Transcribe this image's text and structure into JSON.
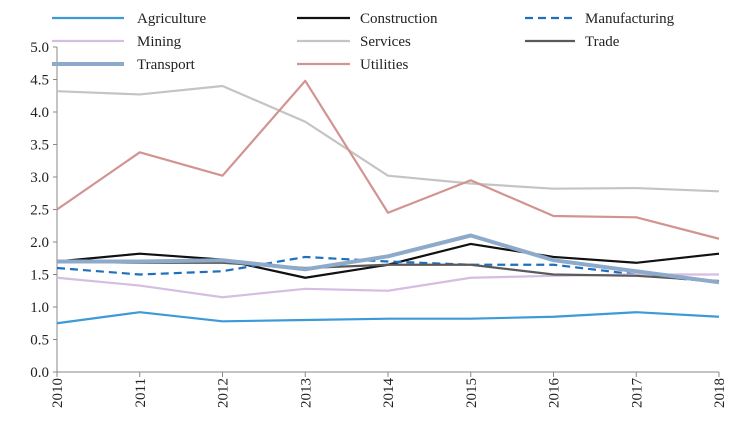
{
  "chart_data": {
    "type": "line",
    "categories": [
      "2010",
      "2011",
      "2012",
      "2013",
      "2014",
      "2015",
      "2016",
      "2017",
      "2018"
    ],
    "ylim": [
      0,
      5
    ],
    "yticks": [
      {
        "value": 0,
        "label": "0.0"
      },
      {
        "value": 0.5,
        "label": "0.5"
      },
      {
        "value": 1,
        "label": "1.0"
      },
      {
        "value": 1.5,
        "label": "1.5"
      },
      {
        "value": 2,
        "label": "2.0"
      },
      {
        "value": 2.5,
        "label": "2.5"
      },
      {
        "value": 3,
        "label": "3.0"
      },
      {
        "value": 3.5,
        "label": "3.5"
      },
      {
        "value": 4,
        "label": "4.0"
      },
      {
        "value": 4.5,
        "label": "4.5"
      },
      {
        "value": 5,
        "label": "5.0"
      }
    ],
    "series": [
      {
        "name": "Agriculture",
        "color": "#3c9ad8",
        "values": [
          0.75,
          0.92,
          0.78,
          0.8,
          0.82,
          0.82,
          0.85,
          0.92,
          0.85
        ]
      },
      {
        "name": "Construction",
        "color": "#111111",
        "values": [
          1.7,
          1.82,
          1.73,
          1.45,
          1.65,
          1.97,
          1.77,
          1.68,
          1.82
        ]
      },
      {
        "name": "Manufacturing",
        "color": "#1f6fbf",
        "dashed": true,
        "values": [
          1.6,
          1.5,
          1.55,
          1.77,
          1.7,
          1.65,
          1.65,
          1.5,
          1.38
        ]
      },
      {
        "name": "Mining",
        "color": "#d6bde2",
        "values": [
          1.45,
          1.33,
          1.15,
          1.28,
          1.25,
          1.45,
          1.48,
          1.5,
          1.5
        ]
      },
      {
        "name": "Services",
        "color": "#c4c4c4",
        "values": [
          4.32,
          4.27,
          4.4,
          3.85,
          3.02,
          2.9,
          2.82,
          2.83,
          2.78
        ]
      },
      {
        "name": "Trade",
        "color": "#5a5a5a",
        "values": [
          1.7,
          1.68,
          1.68,
          1.6,
          1.65,
          1.65,
          1.5,
          1.48,
          1.4
        ]
      },
      {
        "name": "Transport",
        "color": "#8eaacb",
        "width": 4,
        "values": [
          1.7,
          1.7,
          1.72,
          1.58,
          1.78,
          2.1,
          1.72,
          1.55,
          1.38
        ]
      },
      {
        "name": "Utilities",
        "color": "#d29490",
        "values": [
          2.5,
          3.38,
          3.02,
          4.48,
          2.45,
          2.95,
          2.4,
          2.38,
          2.05
        ]
      }
    ]
  }
}
